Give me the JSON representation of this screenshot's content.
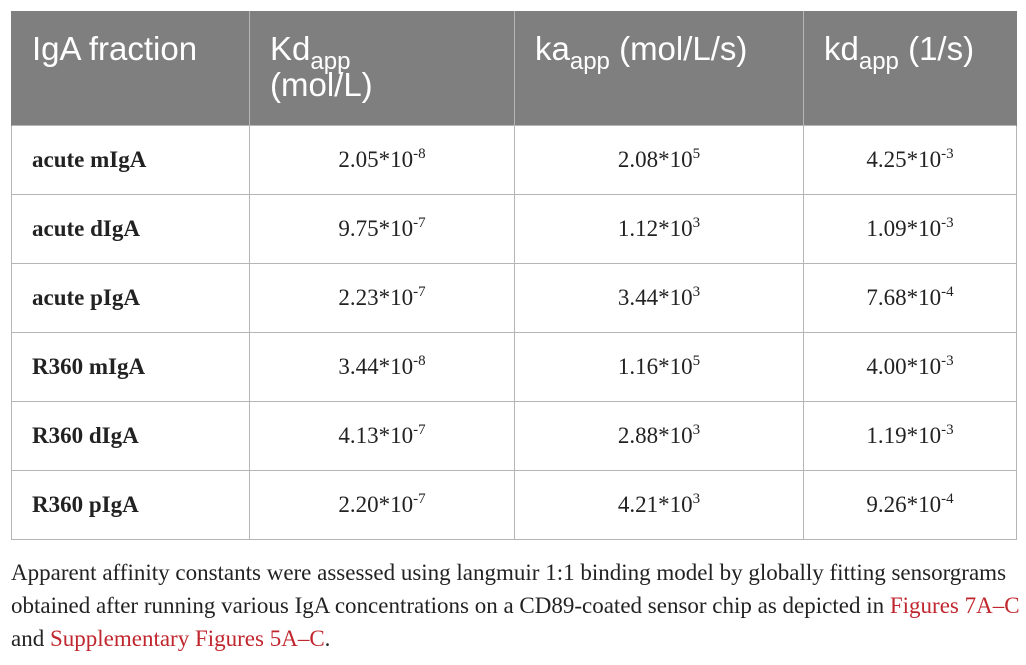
{
  "table": {
    "headers": [
      {
        "main": "IgA fraction",
        "sub": "",
        "rest": ""
      },
      {
        "main": "Kd",
        "sub": "app",
        "rest": "(mol/L)"
      },
      {
        "main": "ka",
        "sub": "app",
        "rest": "(mol/L/s)"
      },
      {
        "main": "kd",
        "sub": "app",
        "rest": "(1/s)"
      }
    ],
    "rows": [
      {
        "label": "acute mIgA",
        "kd_app": {
          "base": "2.05*10",
          "exp": "-8"
        },
        "ka_app": {
          "base": "2.08*10",
          "exp": "5"
        },
        "kdiss_app": {
          "base": "4.25*10",
          "exp": "-3"
        }
      },
      {
        "label": "acute dIgA",
        "kd_app": {
          "base": "9.75*10",
          "exp": "-7"
        },
        "ka_app": {
          "base": "1.12*10",
          "exp": "3"
        },
        "kdiss_app": {
          "base": "1.09*10",
          "exp": "-3"
        }
      },
      {
        "label": "acute pIgA",
        "kd_app": {
          "base": "2.23*10",
          "exp": "-7"
        },
        "ka_app": {
          "base": "3.44*10",
          "exp": "3"
        },
        "kdiss_app": {
          "base": "7.68*10",
          "exp": "-4"
        }
      },
      {
        "label": "R360 mIgA",
        "kd_app": {
          "base": "3.44*10",
          "exp": "-8"
        },
        "ka_app": {
          "base": "1.16*10",
          "exp": "5"
        },
        "kdiss_app": {
          "base": "4.00*10",
          "exp": "-3"
        }
      },
      {
        "label": "R360 dIgA",
        "kd_app": {
          "base": "4.13*10",
          "exp": "-7"
        },
        "ka_app": {
          "base": "2.88*10",
          "exp": "3"
        },
        "kdiss_app": {
          "base": "1.19*10",
          "exp": "-3"
        }
      },
      {
        "label": "R360 pIgA",
        "kd_app": {
          "base": "2.20*10",
          "exp": "-7"
        },
        "ka_app": {
          "base": "4.21*10",
          "exp": "3"
        },
        "kdiss_app": {
          "base": "9.26*10",
          "exp": "-4"
        }
      }
    ]
  },
  "caption": {
    "text_1": "Apparent affinity constants were assessed using langmuir 1:1 binding model by globally fitting sensorgrams obtained after running various IgA concentrations on a CD89-coated sensor chip as depicted in ",
    "link_1": "Figures 7A–C",
    "text_2": " and ",
    "link_2": "Supplementary Figures 5A–C",
    "text_3": "."
  },
  "colors": {
    "header_bg": "#7f7f7f",
    "header_text": "#ffffff",
    "grid": "#b5b5b5",
    "link": "#c0262d"
  }
}
